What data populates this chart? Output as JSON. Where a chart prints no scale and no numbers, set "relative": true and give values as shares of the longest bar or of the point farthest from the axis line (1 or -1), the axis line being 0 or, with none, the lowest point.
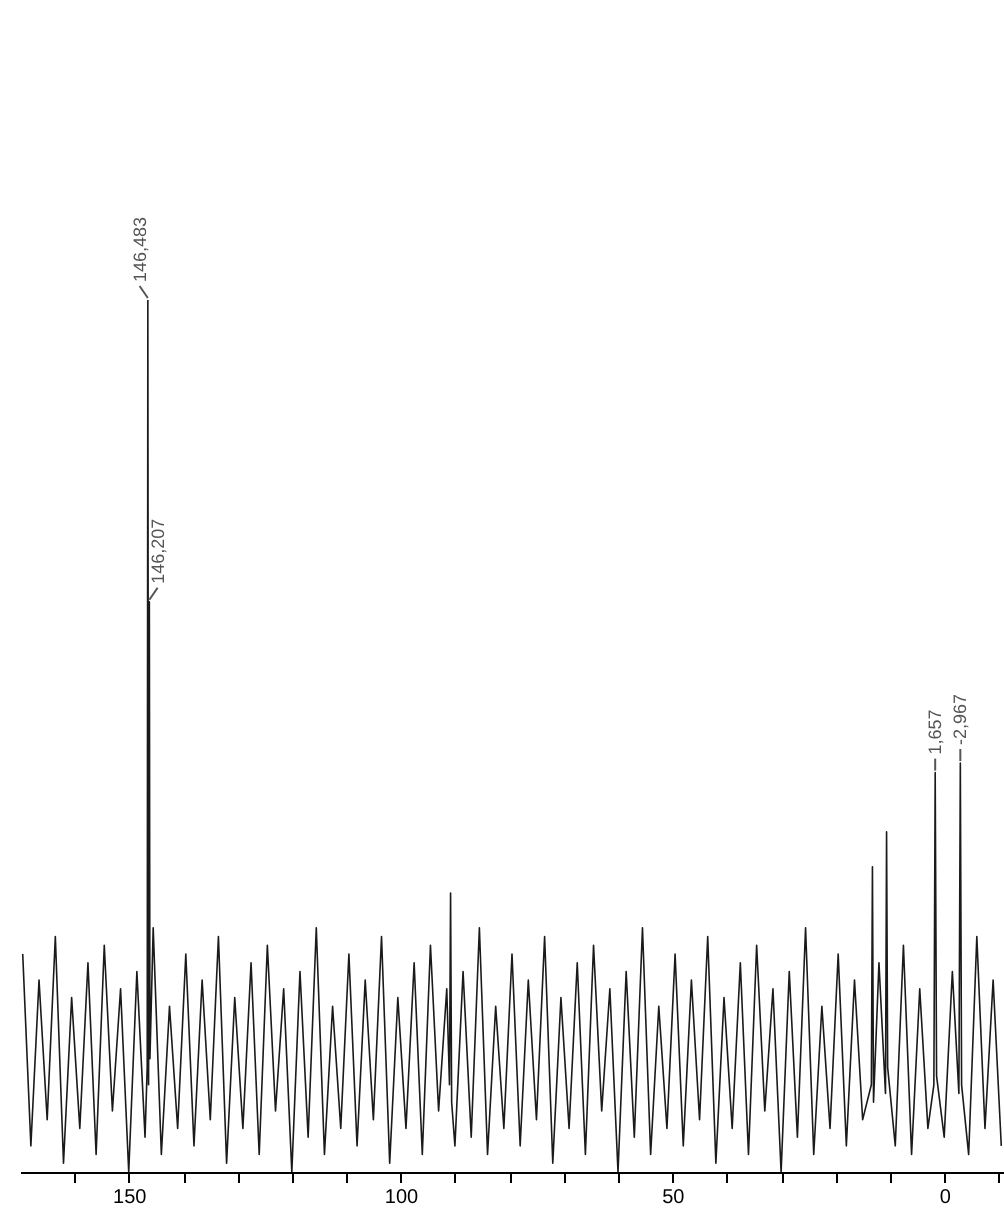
{
  "chart_data": {
    "type": "line",
    "relative": true,
    "x": [
      169.5,
      168,
      166.5,
      165,
      163.5,
      162,
      160.5,
      159,
      157.5,
      156,
      154.5,
      153,
      151.5,
      150,
      148.5,
      147,
      146.6,
      146.483,
      146.35,
      146.207,
      146.1,
      145.5,
      144,
      142.5,
      141,
      139.5,
      138,
      136.5,
      135,
      133.5,
      132,
      130.5,
      129,
      127.5,
      126,
      124.5,
      123,
      121.5,
      120,
      118.5,
      117,
      115.5,
      114,
      112.5,
      111,
      109.5,
      108,
      106.5,
      105,
      103.5,
      102,
      100.5,
      99,
      97.5,
      96,
      94.5,
      93,
      91.5,
      91,
      90.8,
      90.6,
      90,
      88.5,
      87,
      85.5,
      84,
      82.5,
      81,
      79.5,
      78,
      76.5,
      75,
      73.5,
      72,
      70.5,
      69,
      67.5,
      66,
      64.5,
      63,
      61.5,
      60,
      58.5,
      57,
      55.5,
      54,
      52.5,
      51,
      49.5,
      48,
      46.5,
      45,
      43.5,
      42,
      40.5,
      39,
      37.5,
      36,
      34.5,
      33,
      31.5,
      30,
      28.5,
      27,
      25.5,
      24,
      22.5,
      21,
      19.5,
      18,
      16.5,
      15,
      13.4,
      13.2,
      13.0,
      12,
      10.8,
      10.6,
      10.4,
      9,
      7.5,
      6,
      4.5,
      3,
      1.9,
      1.657,
      1.4,
      0,
      -1.5,
      -2.7,
      -2.967,
      -3.2,
      -4.5,
      -6,
      -7.5,
      -9,
      -10.5
    ],
    "series": [
      {
        "color": "#1a1a1a",
        "values": [
          0.25,
          0.03,
          0.22,
          0.06,
          0.27,
          0.01,
          0.2,
          0.05,
          0.24,
          0.02,
          0.26,
          0.07,
          0.21,
          0.0,
          0.23,
          0.04,
          0.12,
          1,
          0.1,
          0.654,
          0.13,
          0.28,
          0.02,
          0.19,
          0.05,
          0.25,
          0.03,
          0.22,
          0.06,
          0.27,
          0.01,
          0.2,
          0.05,
          0.24,
          0.02,
          0.26,
          0.07,
          0.21,
          0.0,
          0.23,
          0.04,
          0.28,
          0.02,
          0.19,
          0.05,
          0.25,
          0.03,
          0.22,
          0.06,
          0.27,
          0.01,
          0.2,
          0.05,
          0.24,
          0.02,
          0.26,
          0.07,
          0.21,
          0.1,
          0.32,
          0.08,
          0.03,
          0.23,
          0.04,
          0.28,
          0.02,
          0.19,
          0.05,
          0.25,
          0.03,
          0.22,
          0.06,
          0.27,
          0.01,
          0.2,
          0.05,
          0.24,
          0.02,
          0.26,
          0.07,
          0.21,
          0.0,
          0.23,
          0.04,
          0.28,
          0.02,
          0.19,
          0.05,
          0.25,
          0.03,
          0.22,
          0.06,
          0.27,
          0.01,
          0.2,
          0.05,
          0.24,
          0.02,
          0.26,
          0.07,
          0.21,
          0.0,
          0.23,
          0.04,
          0.28,
          0.02,
          0.19,
          0.05,
          0.25,
          0.03,
          0.22,
          0.06,
          0.1,
          0.35,
          0.08,
          0.24,
          0.09,
          0.39,
          0.12,
          0.03,
          0.26,
          0.02,
          0.21,
          0.05,
          0.1,
          0.458,
          0.11,
          0.04,
          0.23,
          0.09,
          0.469,
          0.1,
          0.02,
          0.27,
          0.05,
          0.22,
          0.03
        ]
      }
    ],
    "xlim": [
      170,
      -11
    ],
    "xticks": [
      {
        "value": 160,
        "label": null
      },
      150,
      {
        "value": 140,
        "label": null
      },
      {
        "value": 130,
        "label": null
      },
      {
        "value": 120,
        "label": null
      },
      {
        "value": 110,
        "label": null
      },
      100,
      {
        "value": 90,
        "label": null
      },
      {
        "value": 80,
        "label": null
      },
      {
        "value": 70,
        "label": null
      },
      {
        "value": 60,
        "label": null
      },
      50,
      {
        "value": 40,
        "label": null
      },
      {
        "value": 30,
        "label": null
      },
      {
        "value": 20,
        "label": null
      },
      {
        "value": 10,
        "label": null
      },
      0,
      {
        "value": -10,
        "label": null
      }
    ],
    "annotations": [
      {
        "text": "146,483",
        "x": 146.483,
        "y": 1
      },
      {
        "text": "146,207",
        "x": 146.207,
        "y": 0.654
      },
      {
        "text": "1,657",
        "x": 1.657,
        "y": 0.458
      },
      {
        "text": "-2,967",
        "x": -2.967,
        "y": 0.469
      }
    ]
  }
}
